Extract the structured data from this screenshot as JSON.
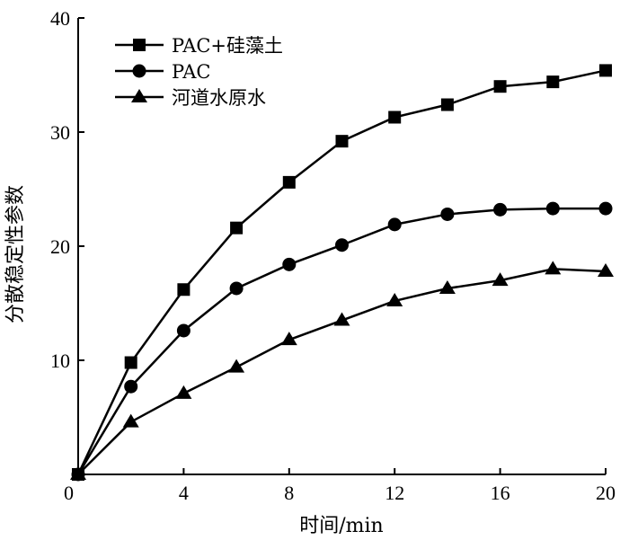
{
  "chart_data": {
    "type": "line",
    "x": [
      0,
      2,
      4,
      6,
      8,
      10,
      12,
      14,
      16,
      18,
      20
    ],
    "series": [
      {
        "name": "PAC+硅藻土",
        "marker": "square",
        "values": [
          0,
          9.8,
          16.2,
          21.6,
          25.6,
          29.2,
          31.3,
          32.4,
          34.0,
          34.4,
          35.4
        ]
      },
      {
        "name": "PAC",
        "marker": "circle",
        "values": [
          0,
          7.7,
          12.6,
          16.3,
          18.4,
          20.1,
          21.9,
          22.8,
          23.2,
          23.3,
          23.3
        ]
      },
      {
        "name": "河道水原水",
        "marker": "triangle",
        "values": [
          0,
          4.6,
          7.1,
          9.4,
          11.8,
          13.5,
          15.2,
          16.3,
          17.0,
          18.0,
          17.8
        ]
      }
    ],
    "xlabel": "时间/min",
    "ylabel": "分散稳定性参数",
    "xlim": [
      0,
      20
    ],
    "ylim": [
      0,
      40
    ],
    "xticks": [
      "0",
      "4",
      "8",
      "12",
      "16",
      "20"
    ],
    "yticks": [
      "10",
      "20",
      "30",
      "40"
    ],
    "legend_position": "top-left",
    "grid": false,
    "color": "#000000"
  }
}
